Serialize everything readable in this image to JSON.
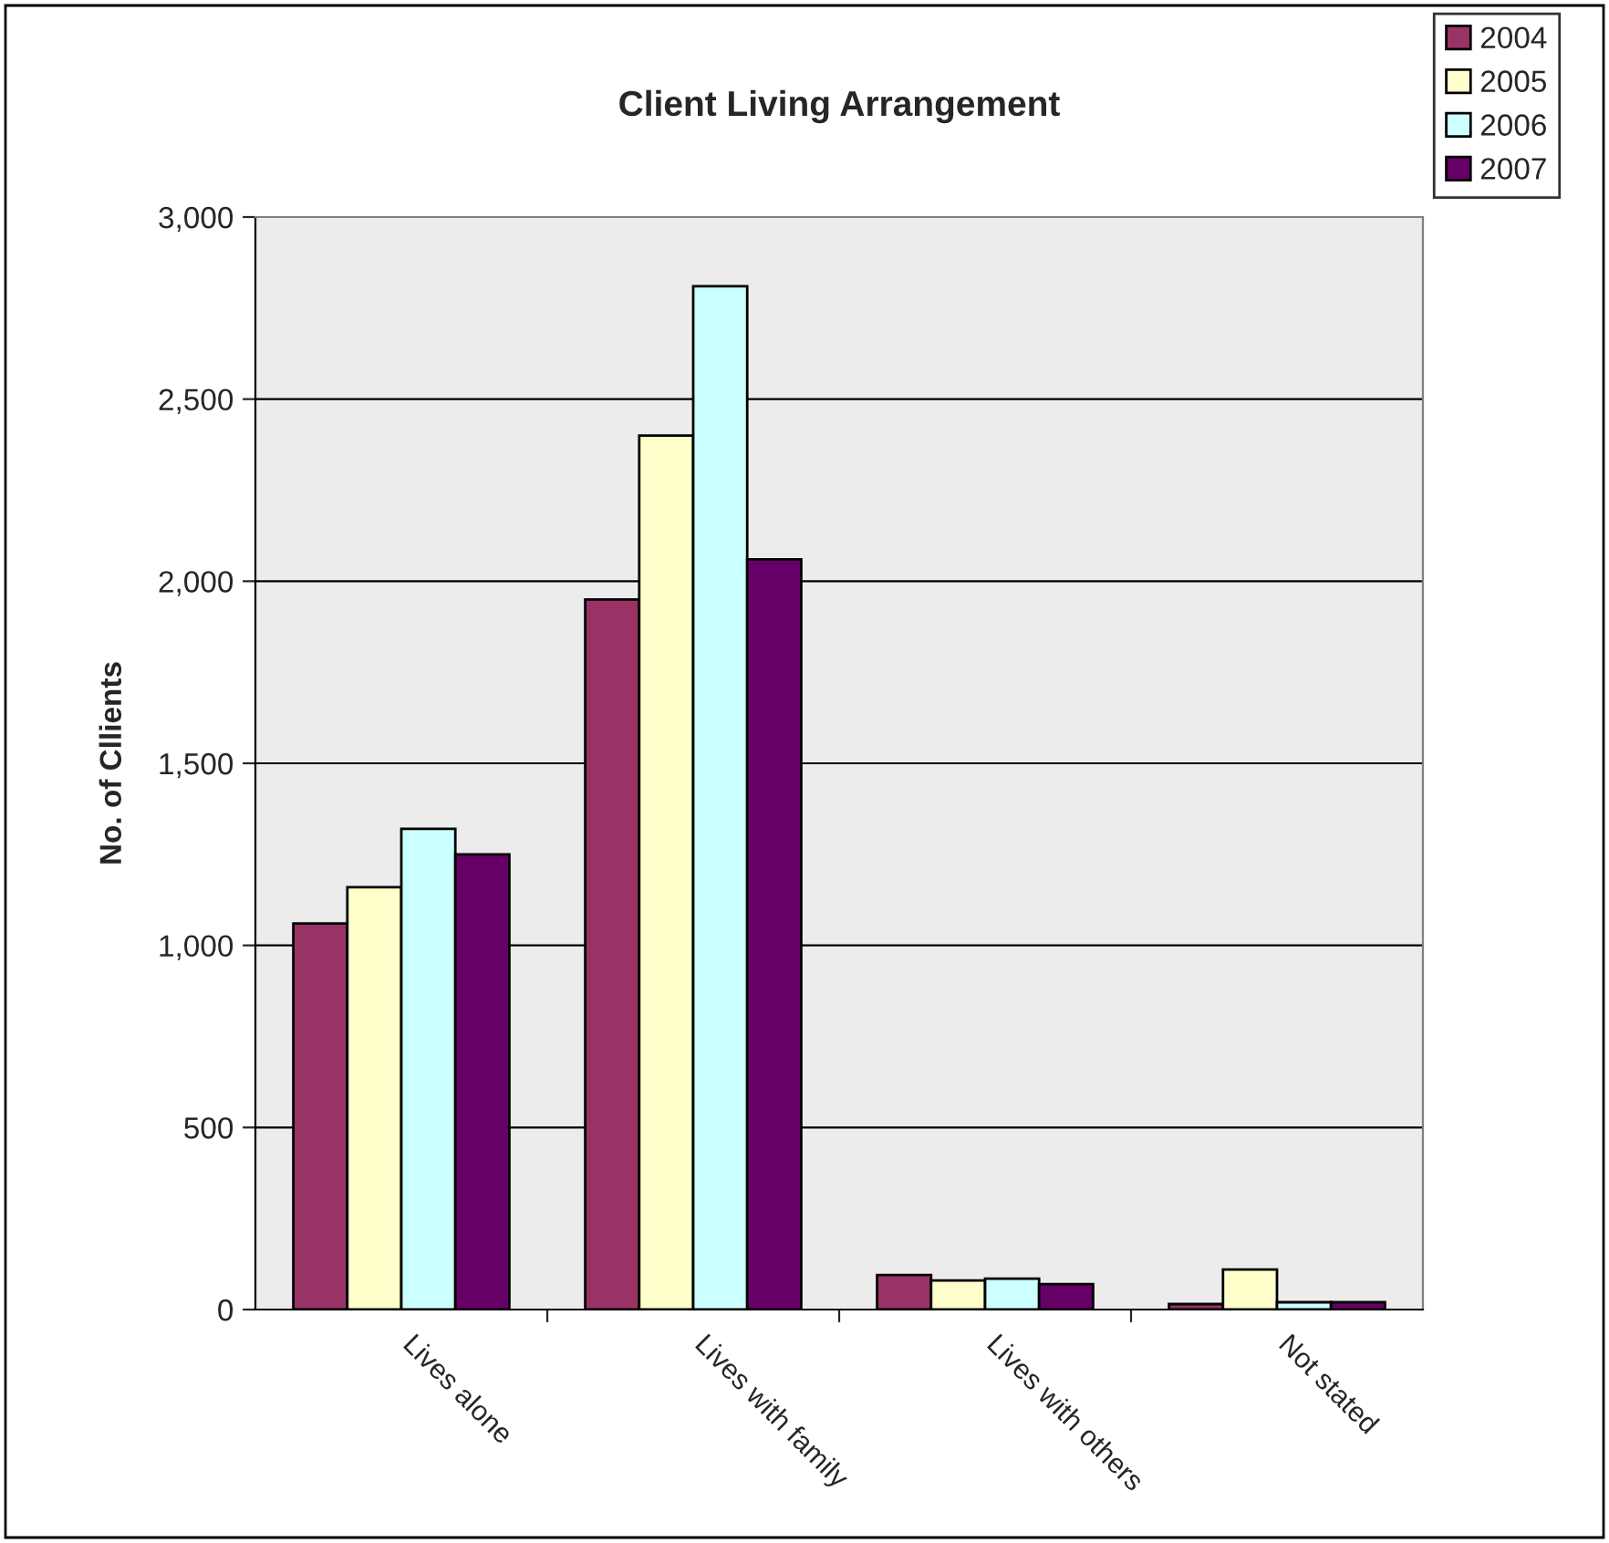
{
  "chart_data": {
    "type": "bar",
    "title": "Client Living Arrangement",
    "ylabel": "No. of Cllients",
    "categories": [
      "Lives alone",
      "Lives with family",
      "Lives with others",
      "Not stated"
    ],
    "series": [
      {
        "name": "2004",
        "color": "#993366",
        "values": [
          1060,
          1950,
          95,
          15
        ]
      },
      {
        "name": "2005",
        "color": "#ffffcc",
        "values": [
          1160,
          2400,
          80,
          110
        ]
      },
      {
        "name": "2006",
        "color": "#ccffff",
        "values": [
          1320,
          2810,
          85,
          20
        ]
      },
      {
        "name": "2007",
        "color": "#660066",
        "values": [
          1250,
          2060,
          70,
          20
        ]
      }
    ],
    "ylim": [
      0,
      3000
    ],
    "yticks": [
      {
        "value": 0,
        "label": "0"
      },
      {
        "value": 500,
        "label": "500"
      },
      {
        "value": 1000,
        "label": "1,000"
      },
      {
        "value": 1500,
        "label": "1,500"
      },
      {
        "value": 2000,
        "label": "2,000"
      },
      {
        "value": 2500,
        "label": "2,500"
      },
      {
        "value": 3000,
        "label": "3,000"
      }
    ],
    "grid": "y",
    "legend": "top right"
  }
}
